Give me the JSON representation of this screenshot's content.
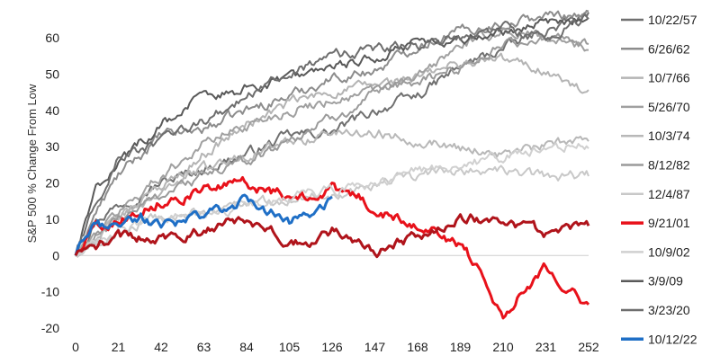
{
  "chart_data": {
    "type": "line",
    "title": "",
    "ylabel": "S&P 500 % Change From Low",
    "xlabel": "",
    "xlim": [
      0,
      252
    ],
    "ylim": [
      -20,
      65
    ],
    "x_ticks": [
      0,
      21,
      42,
      63,
      84,
      105,
      126,
      147,
      168,
      189,
      210,
      231,
      252
    ],
    "y_ticks": [
      -20,
      -10,
      0,
      10,
      20,
      30,
      40,
      50,
      60
    ],
    "grid": false,
    "zero_line": true,
    "legend_position": "right",
    "series": [
      {
        "name": "10/22/57",
        "color": "#707070",
        "width": 2,
        "points": [
          [
            0,
            0
          ],
          [
            10,
            10
          ],
          [
            21,
            14
          ],
          [
            42,
            20
          ],
          [
            63,
            24
          ],
          [
            84,
            28
          ],
          [
            105,
            33
          ],
          [
            126,
            34
          ],
          [
            147,
            40
          ],
          [
            168,
            44
          ],
          [
            189,
            52
          ],
          [
            210,
            57
          ],
          [
            231,
            62
          ],
          [
            252,
            66
          ]
        ]
      },
      {
        "name": "6/26/62",
        "color": "#8c8c8c",
        "width": 2,
        "points": [
          [
            0,
            0
          ],
          [
            10,
            12
          ],
          [
            21,
            22
          ],
          [
            42,
            33
          ],
          [
            63,
            35
          ],
          [
            84,
            40
          ],
          [
            105,
            44
          ],
          [
            126,
            49
          ],
          [
            147,
            51
          ],
          [
            168,
            58
          ],
          [
            189,
            62
          ],
          [
            210,
            64
          ],
          [
            231,
            66
          ],
          [
            252,
            67
          ]
        ]
      },
      {
        "name": "10/7/66",
        "color": "#b4b4b4",
        "width": 2,
        "points": [
          [
            0,
            0
          ],
          [
            21,
            10
          ],
          [
            42,
            18
          ],
          [
            63,
            28
          ],
          [
            84,
            36
          ],
          [
            105,
            42
          ],
          [
            126,
            45
          ],
          [
            147,
            47
          ],
          [
            168,
            49
          ],
          [
            189,
            53
          ],
          [
            210,
            54
          ],
          [
            231,
            51
          ],
          [
            252,
            44
          ]
        ]
      },
      {
        "name": "5/26/70",
        "color": "#a0a0a0",
        "width": 2,
        "points": [
          [
            0,
            0
          ],
          [
            21,
            12
          ],
          [
            42,
            22
          ],
          [
            63,
            31
          ],
          [
            84,
            36
          ],
          [
            105,
            40
          ],
          [
            126,
            43
          ],
          [
            147,
            45
          ],
          [
            168,
            49
          ],
          [
            189,
            58
          ],
          [
            210,
            62
          ],
          [
            231,
            60
          ],
          [
            252,
            57
          ]
        ]
      },
      {
        "name": "10/3/74",
        "color": "#b8b8b8",
        "width": 2,
        "points": [
          [
            0,
            0
          ],
          [
            21,
            10
          ],
          [
            42,
            19
          ],
          [
            63,
            24
          ],
          [
            84,
            28
          ],
          [
            105,
            31
          ],
          [
            126,
            34
          ],
          [
            147,
            34
          ],
          [
            168,
            32
          ],
          [
            189,
            30
          ],
          [
            210,
            28
          ],
          [
            231,
            30
          ],
          [
            252,
            33
          ]
        ]
      },
      {
        "name": "8/12/82",
        "color": "#9a9a9a",
        "width": 2,
        "points": [
          [
            0,
            0
          ],
          [
            21,
            10
          ],
          [
            42,
            17
          ],
          [
            63,
            22
          ],
          [
            84,
            26
          ],
          [
            105,
            32
          ],
          [
            126,
            38
          ],
          [
            147,
            44
          ],
          [
            168,
            48
          ],
          [
            189,
            52
          ],
          [
            210,
            58
          ],
          [
            231,
            60
          ],
          [
            252,
            58
          ]
        ]
      },
      {
        "name": "12/4/87",
        "color": "#c8c8c8",
        "width": 2,
        "points": [
          [
            0,
            0
          ],
          [
            21,
            6
          ],
          [
            42,
            10
          ],
          [
            63,
            12
          ],
          [
            84,
            14
          ],
          [
            105,
            16
          ],
          [
            126,
            17
          ],
          [
            147,
            20
          ],
          [
            168,
            22
          ],
          [
            189,
            24
          ],
          [
            210,
            23
          ],
          [
            231,
            22
          ],
          [
            252,
            22
          ]
        ]
      },
      {
        "name": "9/21/01",
        "color": "#e8111a",
        "width": 3,
        "points": [
          [
            0,
            0
          ],
          [
            8,
            8
          ],
          [
            21,
            10
          ],
          [
            42,
            15
          ],
          [
            63,
            18
          ],
          [
            84,
            20
          ],
          [
            105,
            16
          ],
          [
            126,
            18
          ],
          [
            140,
            16
          ],
          [
            147,
            12
          ],
          [
            168,
            9
          ],
          [
            189,
            3
          ],
          [
            200,
            -5
          ],
          [
            210,
            -17
          ],
          [
            220,
            -9
          ],
          [
            231,
            -3
          ],
          [
            241,
            -8
          ],
          [
            252,
            -14
          ]
        ]
      },
      {
        "name": "10/9/02",
        "color": "#d0d0d0",
        "width": 2,
        "points": [
          [
            0,
            0
          ],
          [
            21,
            7
          ],
          [
            42,
            10
          ],
          [
            63,
            11
          ],
          [
            84,
            14
          ],
          [
            105,
            16
          ],
          [
            126,
            18
          ],
          [
            147,
            20
          ],
          [
            168,
            23
          ],
          [
            189,
            25
          ],
          [
            210,
            27
          ],
          [
            231,
            29
          ],
          [
            252,
            31
          ]
        ]
      },
      {
        "name": "3/9/09",
        "color": "#595959",
        "width": 2,
        "points": [
          [
            0,
            0
          ],
          [
            10,
            18
          ],
          [
            21,
            26
          ],
          [
            42,
            36
          ],
          [
            63,
            44
          ],
          [
            84,
            46
          ],
          [
            105,
            49
          ],
          [
            126,
            51
          ],
          [
            147,
            55
          ],
          [
            168,
            58
          ],
          [
            189,
            60
          ],
          [
            210,
            62
          ],
          [
            231,
            64
          ],
          [
            252,
            66
          ]
        ]
      },
      {
        "name": "3/23/20",
        "color": "#6e6e6e",
        "width": 2,
        "points": [
          [
            0,
            0
          ],
          [
            10,
            15
          ],
          [
            21,
            27
          ],
          [
            42,
            31
          ],
          [
            63,
            37
          ],
          [
            84,
            44
          ],
          [
            105,
            50
          ],
          [
            126,
            55
          ],
          [
            147,
            57
          ],
          [
            168,
            58
          ],
          [
            189,
            60
          ],
          [
            210,
            63
          ],
          [
            231,
            60
          ],
          [
            252,
            66
          ]
        ]
      },
      {
        "name": "10/12/22",
        "color": "#1f6fc6",
        "width": 3,
        "points": [
          [
            0,
            0
          ],
          [
            8,
            7
          ],
          [
            21,
            9
          ],
          [
            32,
            11
          ],
          [
            42,
            8
          ],
          [
            52,
            9
          ],
          [
            63,
            11
          ],
          [
            73,
            13
          ],
          [
            84,
            15
          ],
          [
            95,
            12
          ],
          [
            105,
            9
          ],
          [
            115,
            12
          ],
          [
            126,
            15
          ]
        ]
      },
      {
        "name": "",
        "color": "#b0141b",
        "width": 3,
        "points": [
          [
            0,
            0
          ],
          [
            21,
            5
          ],
          [
            42,
            5
          ],
          [
            63,
            7
          ],
          [
            84,
            10
          ],
          [
            105,
            4
          ],
          [
            118,
            4
          ],
          [
            126,
            7
          ],
          [
            147,
            0
          ],
          [
            155,
            3
          ],
          [
            168,
            5
          ],
          [
            189,
            11
          ],
          [
            210,
            9
          ],
          [
            231,
            6
          ],
          [
            252,
            8
          ]
        ]
      }
    ]
  }
}
